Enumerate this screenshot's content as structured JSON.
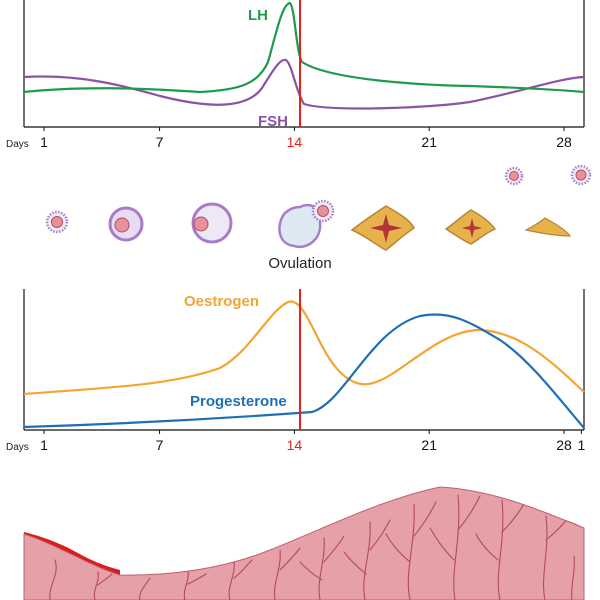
{
  "colors": {
    "lh": "#1e9a4a",
    "fsh": "#8a52a8",
    "oestrogen": "#f2a530",
    "progesterone": "#1e6fb5",
    "ovulation_line": "#e8201a",
    "menses": "#d81e1a",
    "endometrium": "#e6a0a8",
    "vessel": "#b24a5c",
    "follicle": "#f3ecf6",
    "corpus_luteum": "#e7b24a",
    "corpus_core": "#b5343a"
  },
  "hormone_chart": {
    "lh_label": "LH",
    "fsh_label": "FSH"
  },
  "ovary_chart": {
    "ovulation_label": "Ovulation"
  },
  "steroid_chart": {
    "oestrogen_label": "Oestrogen",
    "progesterone_label": "Progesterone"
  },
  "axis_top": {
    "days_label": "Days",
    "ticks": [
      {
        "label": "1",
        "day": 1
      },
      {
        "label": "7",
        "day": 7
      },
      {
        "label": "14",
        "day": 14,
        "highlight": true
      },
      {
        "label": "21",
        "day": 21
      },
      {
        "label": "28",
        "day": 28
      }
    ]
  },
  "axis_bottom": {
    "days_label": "Days",
    "ticks": [
      {
        "label": "1",
        "day": 1
      },
      {
        "label": "7",
        "day": 7
      },
      {
        "label": "14",
        "day": 14,
        "highlight": true
      },
      {
        "label": "21",
        "day": 21
      },
      {
        "label": "28",
        "day": 28
      },
      {
        "label": "1",
        "day": 28.9
      }
    ]
  }
}
